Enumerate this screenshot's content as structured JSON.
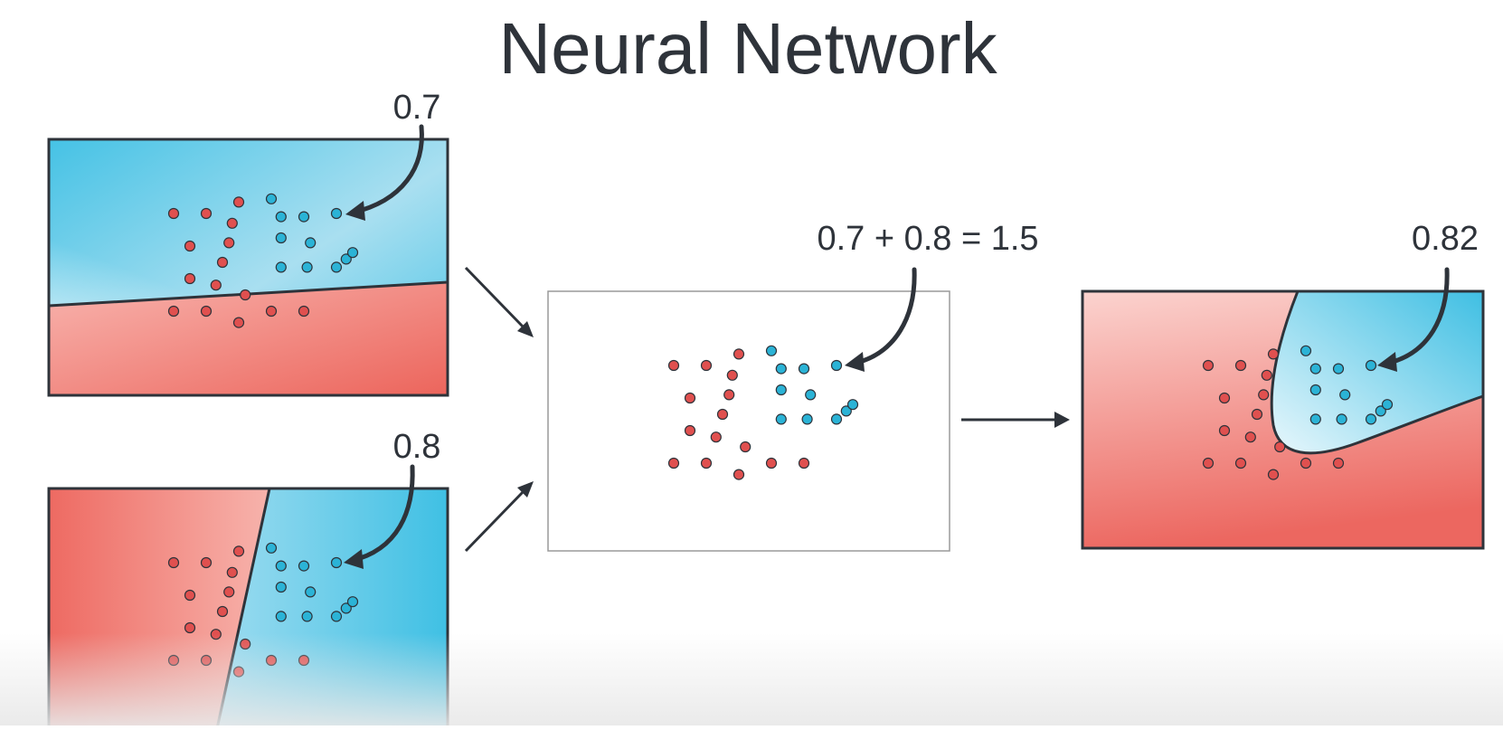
{
  "title": "Neural Network",
  "panels": {
    "top_left": {
      "value_label": "0.7"
    },
    "bottom_left": {
      "value_label": "0.8"
    },
    "middle": {
      "sum_label": "0.7 + 0.8 = 1.5"
    },
    "right": {
      "value_label": "0.82"
    }
  },
  "colors": {
    "red_point": "#e0504f",
    "blue_point": "#2bb3d6",
    "region_red": "#f07b73",
    "region_blue": "#45c2e5",
    "stroke": "#2e333a"
  },
  "points": {
    "red": [
      [
        0,
        0
      ],
      [
        1,
        0
      ],
      [
        2,
        -0.35
      ],
      [
        1.8,
        0.3
      ],
      [
        0.5,
        1
      ],
      [
        1.5,
        1.5
      ],
      [
        1.7,
        0.9
      ],
      [
        0.5,
        2
      ],
      [
        1.3,
        2.2
      ],
      [
        2.2,
        2.5
      ],
      [
        0,
        3
      ],
      [
        1,
        3
      ],
      [
        2,
        3.35
      ],
      [
        3,
        3
      ],
      [
        4,
        3
      ]
    ],
    "blue": [
      [
        3,
        -0.45
      ],
      [
        3.3,
        0.1
      ],
      [
        4,
        0.1
      ],
      [
        5,
        0
      ],
      [
        3.3,
        0.75
      ],
      [
        4.2,
        0.9
      ],
      [
        5.3,
        1.4
      ],
      [
        3.3,
        1.65
      ],
      [
        4.1,
        1.65
      ],
      [
        5,
        1.65
      ],
      [
        5.5,
        1.2
      ]
    ]
  }
}
